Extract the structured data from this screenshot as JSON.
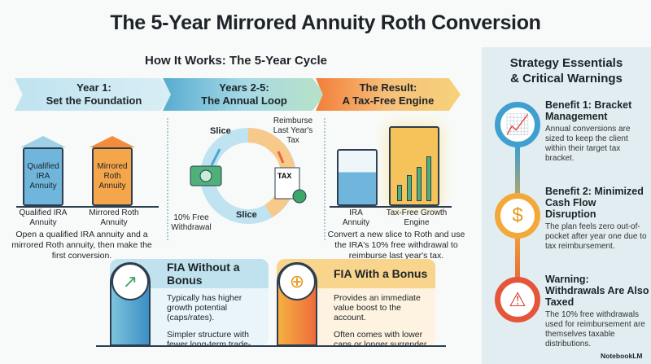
{
  "title": "The 5-Year Mirrored Annuity Roth Conversion",
  "how_it_works": {
    "title": "How It Works: The 5-Year Cycle",
    "steps": [
      {
        "line1": "Year 1:",
        "line2": "Set the Foundation"
      },
      {
        "line1": "Years 2-5:",
        "line2": "The Annual Loop"
      },
      {
        "line1": "The Result:",
        "line2": "A Tax-Free Engine"
      }
    ],
    "year1": {
      "building1_text": "Qualified IRA Annuity",
      "building2_text": "Mirrored Roth Annuity",
      "label1": "Qualified IRA Annuity",
      "label2": "Mirrored Roth Annuity",
      "description": "Open a qualified IRA annuity and a mirrored Roth annuity, then make the first conversion."
    },
    "loop": {
      "slice_top": "Slice",
      "slice_bottom": "Slice",
      "reimburse": "Reimburse Last Year's Tax",
      "withdrawal": "10% Free Withdrawal",
      "tax_doc": "TAX"
    },
    "result": {
      "label1": "IRA Annuity",
      "label2": "Tax-Free Growth Engine",
      "description": "Convert a new slice to Roth and use the IRA's 10% free withdrawal to reimburse last year's tax."
    }
  },
  "cards": [
    {
      "title": "FIA Without a Bonus",
      "icon": "growth-arrow-icon",
      "points": [
        "Typically has higher growth potential (caps/rates).",
        "Simpler structure with fewer long-term trade-offs."
      ]
    },
    {
      "title": "FIA With a Bonus",
      "icon": "coins-plus-icon",
      "points": [
        "Provides an immediate value boost to the account.",
        "Often comes with lower caps or longer surrender periods."
      ]
    }
  ],
  "essentials": {
    "title_line1": "Strategy Essentials",
    "title_line2": "& Critical Warnings",
    "items": [
      {
        "title": "Benefit 1: Bracket Management",
        "text": "Annual conversions are sized to keep the client within their target tax bracket.",
        "icon": "chart-scale-icon",
        "color": "#3f9fcf"
      },
      {
        "title": "Benefit 2: Minimized Cash Flow Disruption",
        "text": "The plan feels zero out-of-pocket after year one due to tax reimbursement.",
        "icon": "dollar-coin-icon",
        "color": "#f3a93a"
      },
      {
        "title": "Warning: Withdrawals Are Also Taxed",
        "text": "The 10% free withdrawals used for reimbursement are themselves taxable distributions.",
        "icon": "warning-icon",
        "color": "#e4553a"
      }
    ]
  },
  "watermark": "NotebookLM"
}
